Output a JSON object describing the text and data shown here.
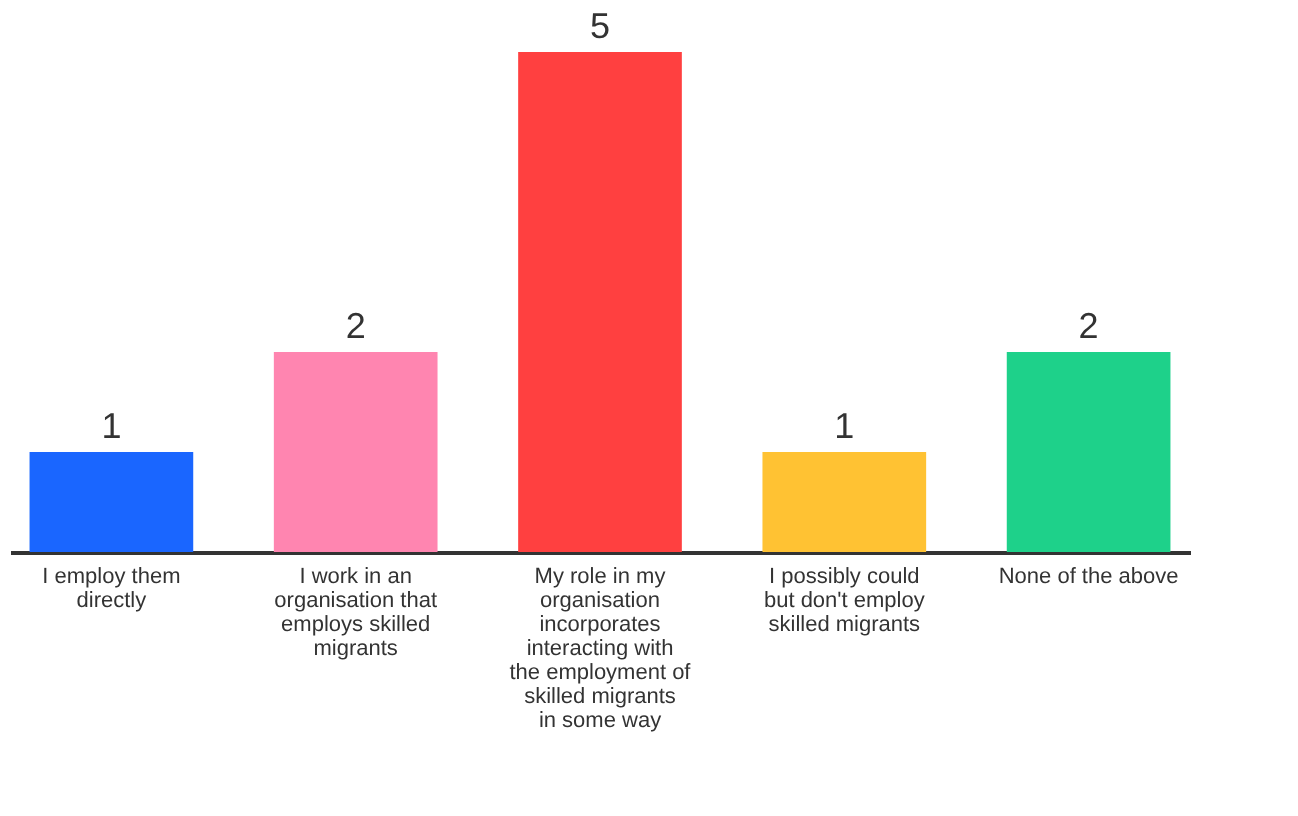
{
  "chart_data": {
    "type": "bar",
    "categories": [
      "I employ them directly",
      "I work in an organisation that employs skilled migrants",
      "My role in my organisation incorporates interacting with the employment of skilled migrants in some way",
      "I possibly could but don't employ skilled migrants",
      "None of the above"
    ],
    "values": [
      1,
      2,
      5,
      1,
      2
    ],
    "colors": [
      "#1a66ff",
      "#ff85b0",
      "#ff4040",
      "#ffc233",
      "#1ed18a"
    ],
    "data_labels": true
  }
}
